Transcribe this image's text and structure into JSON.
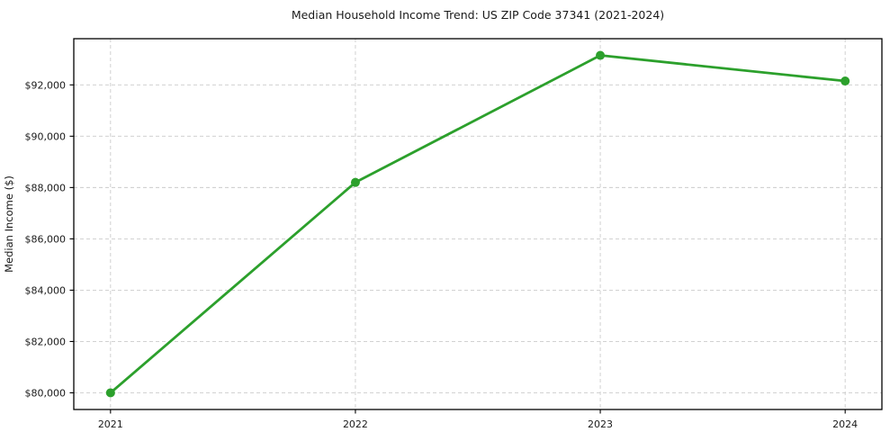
{
  "chart_data": {
    "type": "line",
    "title": "Median Household Income Trend: US ZIP Code 37341 (2021-2024)",
    "xlabel": "",
    "ylabel": "Median Income ($)",
    "x": [
      2021,
      2022,
      2023,
      2024
    ],
    "xtick_labels": [
      "2021",
      "2022",
      "2023",
      "2024"
    ],
    "series": [
      {
        "name": "Median Income ($)",
        "values": [
          80000,
          88200,
          93150,
          92150
        ],
        "color": "#2ca02c",
        "marker": "circle"
      }
    ],
    "yticks": [
      80000,
      82000,
      84000,
      86000,
      88000,
      90000,
      92000
    ],
    "ytick_labels": [
      "$80,000",
      "$82,000",
      "$84,000",
      "$86,000",
      "$88,000",
      "$90,000",
      "$92,000"
    ],
    "ylim": [
      79350,
      93800
    ],
    "xmargin": 0.05,
    "grid": true,
    "grid_color": "#cccccc",
    "legend": "none",
    "background": "#ffffff"
  }
}
